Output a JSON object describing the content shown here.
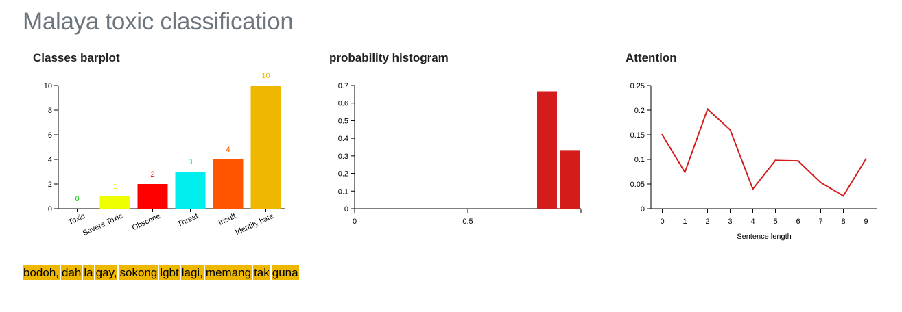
{
  "page": {
    "title": "Malaya toxic classification"
  },
  "chart_data": [
    {
      "type": "bar",
      "title": "Classes barplot",
      "categories": [
        "Toxic",
        "Severe Toxic",
        "Obscene",
        "Threat",
        "Insult",
        "Identity hate"
      ],
      "values": [
        0,
        1,
        2,
        3,
        4,
        10
      ],
      "colors": [
        "#00cc00",
        "#eeff00",
        "#ff0000",
        "#00eeee",
        "#ff5500",
        "#eeb700"
      ],
      "ylim": [
        0,
        10
      ],
      "yticks": [
        0,
        2,
        4,
        6,
        8,
        10
      ],
      "xlabel": "",
      "ylabel": "",
      "grid": false
    },
    {
      "type": "bar",
      "title": "probability histogram",
      "bins": [
        {
          "x0": 0.0,
          "x1": 0.1,
          "value": 0
        },
        {
          "x0": 0.1,
          "x1": 0.2,
          "value": 0
        },
        {
          "x0": 0.2,
          "x1": 0.3,
          "value": 0
        },
        {
          "x0": 0.3,
          "x1": 0.4,
          "value": 0
        },
        {
          "x0": 0.4,
          "x1": 0.5,
          "value": 0
        },
        {
          "x0": 0.5,
          "x1": 0.6,
          "value": 0
        },
        {
          "x0": 0.6,
          "x1": 0.7,
          "value": 0
        },
        {
          "x0": 0.7,
          "x1": 0.8,
          "value": 0
        },
        {
          "x0": 0.8,
          "x1": 0.9,
          "value": 0.667
        },
        {
          "x0": 0.9,
          "x1": 1.0,
          "value": 0.333
        }
      ],
      "xticks": [
        0,
        0.5
      ],
      "xlim": [
        0,
        1.0
      ],
      "ylim": [
        0,
        0.7
      ],
      "yticks": [
        0,
        0.1,
        0.2,
        0.3,
        0.4,
        0.5,
        0.6,
        0.7
      ],
      "color": "#d41c1c",
      "xlabel": "",
      "ylabel": "",
      "grid": false
    },
    {
      "type": "line",
      "title": "Attention",
      "x": [
        0,
        1,
        2,
        3,
        4,
        5,
        6,
        7,
        8,
        9
      ],
      "y": [
        0.15,
        0.074,
        0.202,
        0.16,
        0.04,
        0.098,
        0.097,
        0.053,
        0.026,
        0.101
      ],
      "xlim": [
        -0.5,
        9.5
      ],
      "ylim": [
        0,
        0.25
      ],
      "yticks": [
        0,
        0.05,
        0.1,
        0.15,
        0.2,
        0.25
      ],
      "color": "#d41c1c",
      "xlabel": "Sentence length",
      "ylabel": "",
      "grid": false
    }
  ],
  "text_highlight": {
    "color": "#eeb700",
    "words": [
      "bodoh,",
      "dah",
      "la",
      "gay,",
      "sokong",
      "lgbt",
      "lagi,",
      "memang",
      "tak",
      "guna"
    ]
  }
}
